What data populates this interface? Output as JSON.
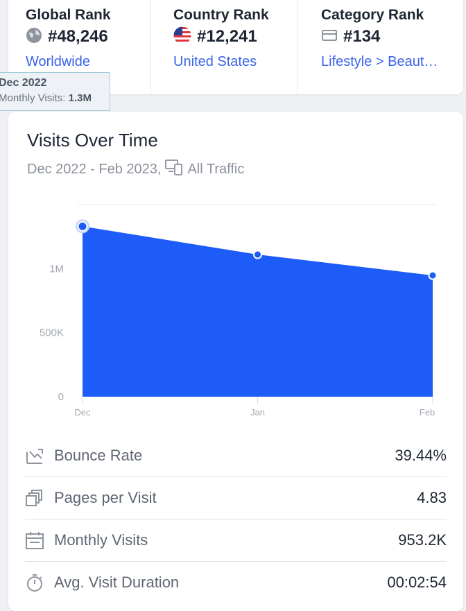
{
  "ranks": [
    {
      "title": "Global Rank",
      "value": "#48,246",
      "link": "Worldwide",
      "icon": "globe-icon"
    },
    {
      "title": "Country Rank",
      "value": "#12,241",
      "link": "United States",
      "icon": "us-flag-icon"
    },
    {
      "title": "Category Rank",
      "value": "#134",
      "link": "Lifestyle > Beaut…",
      "icon": "category-icon"
    }
  ],
  "visits": {
    "title": "Visits Over Time",
    "subtitle": "Dec 2022 - Feb 2023,",
    "traffic": "All Traffic",
    "tooltip": {
      "title": "Dec 2022",
      "label": "Monthly Visits:",
      "value": "1.3M"
    }
  },
  "chart_data": {
    "type": "area",
    "categories": [
      "Dec",
      "Jan",
      "Feb"
    ],
    "values": [
      1330000,
      1110000,
      947000
    ],
    "ylim": [
      0,
      1500000
    ],
    "yticks": [
      {
        "value": 0,
        "label": "0"
      },
      {
        "value": 500000,
        "label": "500K"
      },
      {
        "value": 1000000,
        "label": "1M"
      }
    ],
    "color": "#1e5cfa"
  },
  "metrics": [
    {
      "label": "Bounce Rate",
      "value": "39.44%",
      "icon": "bounce-rate-icon"
    },
    {
      "label": "Pages per Visit",
      "value": "4.83",
      "icon": "pages-icon"
    },
    {
      "label": "Monthly Visits",
      "value": "953.2K",
      "icon": "calendar-icon"
    },
    {
      "label": "Avg. Visit Duration",
      "value": "00:02:54",
      "icon": "stopwatch-icon"
    }
  ]
}
